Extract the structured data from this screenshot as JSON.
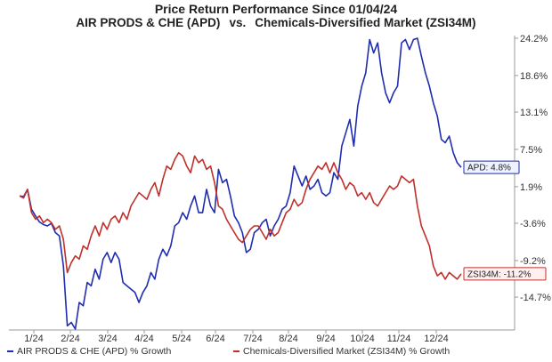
{
  "chart_data": {
    "type": "line",
    "title": "Price Return Performance Since 01/04/24",
    "subtitle_left": "AIR PRODS & CHE (APD)",
    "subtitle_vs": "vs.",
    "subtitle_right": "Chemicals-Diversified Market (ZSI34M)",
    "x_tick_labels": [
      "1/24",
      "2/24",
      "3/24",
      "4/24",
      "5/24",
      "6/24",
      "7/24",
      "8/24",
      "9/24",
      "10/24",
      "11/24",
      "12/24"
    ],
    "y_tick_labels": [
      "24.2%",
      "18.6%",
      "13.1%",
      "7.5%",
      "1.9%",
      "-3.6%",
      "-9.2%",
      "-14.7%"
    ],
    "y_ticks": [
      24.2,
      18.6,
      13.1,
      7.5,
      1.9,
      -3.6,
      -9.2,
      -14.7
    ],
    "ylim": [
      -19.5,
      24.2
    ],
    "grid": false,
    "legend_position": "bottom",
    "series": [
      {
        "name": "AIR PRODS & CHE (APD) % Growth",
        "color": "#1f2db0",
        "end_label": "APD: 4.8%",
        "values": [
          0.5,
          0.4,
          1.5,
          -1.5,
          -2.5,
          -3.4,
          -3.8,
          -4.0,
          -3.6,
          -5.0,
          -5.5,
          -10.0,
          -19.0,
          -18.5,
          -19.5,
          -15.5,
          -16.0,
          -12.5,
          -13.0,
          -10.5,
          -12.0,
          -9.0,
          -8.0,
          -9.5,
          -8.0,
          -9.0,
          -12.5,
          -13.0,
          -13.5,
          -14.0,
          -15.5,
          -14.0,
          -13.0,
          -11.0,
          -12.0,
          -9.0,
          -7.5,
          -8.5,
          -7.0,
          -4.0,
          -3.5,
          -2.0,
          -3.0,
          -1.0,
          0.5,
          -2.0,
          -2.0,
          1.5,
          -1.0,
          -2.0,
          4.5,
          2.5,
          3.0,
          0.5,
          -2.5,
          -3.5,
          -5.0,
          -8.0,
          -7.5,
          -5.0,
          -4.5,
          -3.5,
          -3.0,
          -5.5,
          -4.0,
          -3.0,
          -1.5,
          -1.0,
          1.0,
          5.0,
          3.5,
          2.0,
          3.5,
          1.5,
          2.0,
          3.0,
          1.0,
          0.5,
          1.0,
          4.0,
          3.0,
          8.0,
          10.0,
          12.0,
          8.0,
          14.0,
          17.0,
          19.0,
          24.0,
          22.0,
          23.5,
          19.0,
          16.0,
          14.5,
          16.0,
          17.0,
          23.5,
          24.0,
          22.5,
          24.0,
          24.2,
          21.5,
          19.0,
          17.0,
          14.5,
          12.5,
          9.0,
          8.5,
          9.5,
          7.0,
          5.5,
          4.8
        ]
      },
      {
        "name": "Chemicals-Diversified Market (ZSI34M) % Growth",
        "color": "#c0302a",
        "end_label": "ZSI34M: -11.2%",
        "values": [
          0.5,
          0.2,
          1.5,
          -2.0,
          -3.0,
          -2.5,
          -3.5,
          -3.0,
          -3.5,
          -4.5,
          -4.0,
          -6.0,
          -11.0,
          -9.5,
          -8.5,
          -9.0,
          -7.0,
          -7.5,
          -5.5,
          -4.0,
          -5.5,
          -3.5,
          -4.5,
          -3.0,
          -2.5,
          -3.5,
          -2.0,
          -3.0,
          -1.0,
          0.0,
          1.0,
          0.5,
          0.0,
          1.5,
          2.5,
          0.5,
          3.0,
          5.0,
          4.5,
          6.0,
          7.0,
          6.5,
          5.0,
          4.0,
          6.5,
          5.5,
          6.0,
          4.5,
          5.0,
          2.5,
          -1.0,
          -1.5,
          -3.0,
          -4.0,
          -5.0,
          -6.0,
          -6.5,
          -5.5,
          -4.5,
          -4.0,
          -4.0,
          -5.0,
          -6.0,
          -4.5,
          -5.5,
          -5.0,
          -3.5,
          -2.0,
          -1.5,
          0.0,
          -1.0,
          -0.5,
          1.5,
          3.0,
          4.0,
          5.0,
          4.5,
          5.5,
          4.0,
          5.5,
          4.0,
          3.0,
          1.5,
          2.5,
          2.0,
          0.5,
          1.0,
          0.0,
          1.0,
          -0.5,
          -1.0,
          0.0,
          1.0,
          2.0,
          1.5,
          2.0,
          3.5,
          3.0,
          2.5,
          3.0,
          -1.0,
          -4.0,
          -5.5,
          -7.0,
          -10.0,
          -11.5,
          -11.0,
          -12.0,
          -11.0,
          -11.5,
          -12.0,
          -11.2
        ]
      }
    ]
  }
}
